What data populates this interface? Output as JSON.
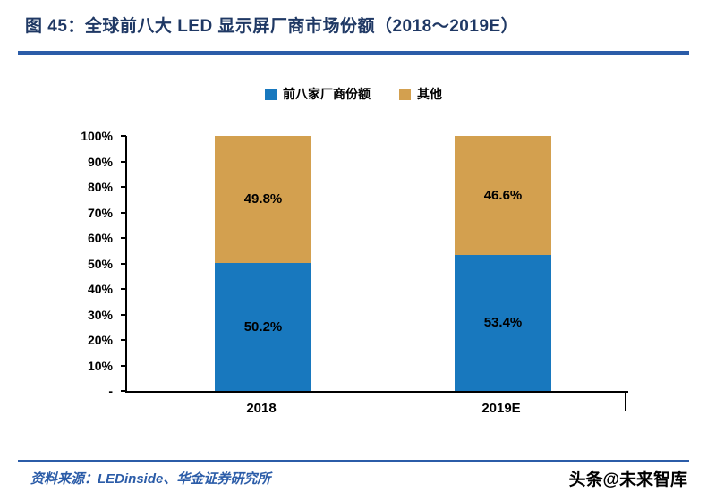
{
  "header": {
    "title": "图 45：全球前八大 LED 显示屏厂商市场份额（2018～2019E）"
  },
  "colors": {
    "title_navy": "#1f3864",
    "rule_blue": "#2b5ca8",
    "bar_blue": "#1878be",
    "bar_tan": "#d3a04f",
    "axis_black": "#000000"
  },
  "chart_data": {
    "type": "bar",
    "stacked": true,
    "categories": [
      "2018",
      "2019E"
    ],
    "series": [
      {
        "name": "前八家厂商份额",
        "color": "#1878be",
        "values": [
          50.2,
          53.4
        ],
        "labels": [
          "50.2%",
          "53.4%"
        ]
      },
      {
        "name": "其他",
        "color": "#d3a04f",
        "values": [
          49.8,
          46.6
        ],
        "labels": [
          "49.8%",
          "46.6%"
        ]
      }
    ],
    "y_ticks": [
      "100%",
      "90%",
      "80%",
      "70%",
      "60%",
      "50%",
      "40%",
      "30%",
      "20%",
      "10%",
      "-"
    ],
    "ylim": [
      0,
      100
    ],
    "grid": false,
    "legend_position": "top",
    "title": "全球前八大 LED 显示屏厂商市场份额（2018～2019E）",
    "xlabel": "",
    "ylabel": ""
  },
  "footer": {
    "source": "资料来源：LEDinside、华金证券研究所",
    "watermark": "头条@未来智库"
  }
}
